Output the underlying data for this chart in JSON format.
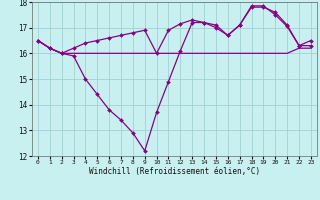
{
  "xlabel": "Windchill (Refroidissement éolien,°C)",
  "bg_color": "#c8f0f0",
  "line_color": "#880088",
  "grid_color": "#99cccc",
  "xlim": [
    -0.5,
    23.5
  ],
  "ylim": [
    12,
    18
  ],
  "yticks": [
    12,
    13,
    14,
    15,
    16,
    17,
    18
  ],
  "xticks": [
    0,
    1,
    2,
    3,
    4,
    5,
    6,
    7,
    8,
    9,
    10,
    11,
    12,
    13,
    14,
    15,
    16,
    17,
    18,
    19,
    20,
    21,
    22,
    23
  ],
  "series1_x": [
    0,
    1,
    2,
    3,
    4,
    5,
    6,
    7,
    8,
    9,
    10,
    11,
    12,
    13,
    14,
    15,
    16,
    17,
    18,
    19,
    20,
    21,
    22,
    23
  ],
  "series1_y": [
    16.5,
    16.2,
    16.0,
    15.9,
    15.0,
    14.4,
    13.8,
    13.4,
    12.9,
    12.2,
    13.7,
    14.9,
    16.1,
    17.2,
    17.2,
    17.1,
    16.7,
    17.1,
    17.8,
    17.8,
    17.6,
    17.1,
    16.3,
    16.5
  ],
  "series2_x": [
    0,
    1,
    2,
    3,
    4,
    5,
    6,
    7,
    8,
    9,
    10,
    11,
    12,
    13,
    14,
    15,
    16,
    17,
    18,
    19,
    20,
    21,
    22,
    23
  ],
  "series2_y": [
    16.5,
    16.2,
    16.0,
    16.0,
    16.0,
    16.0,
    16.0,
    16.0,
    16.0,
    16.0,
    16.0,
    16.0,
    16.0,
    16.0,
    16.0,
    16.0,
    16.0,
    16.0,
    16.0,
    16.0,
    16.0,
    16.0,
    16.2,
    16.2
  ],
  "series3_x": [
    0,
    1,
    2,
    3,
    4,
    5,
    6,
    7,
    8,
    9,
    10,
    11,
    12,
    13,
    14,
    15,
    16,
    17,
    18,
    19,
    20,
    21,
    22,
    23
  ],
  "series3_y": [
    16.5,
    16.2,
    16.0,
    16.2,
    16.4,
    16.5,
    16.6,
    16.7,
    16.8,
    16.9,
    16.0,
    16.9,
    17.15,
    17.3,
    17.2,
    17.0,
    16.7,
    17.1,
    17.85,
    17.85,
    17.5,
    17.05,
    16.3,
    16.3
  ]
}
